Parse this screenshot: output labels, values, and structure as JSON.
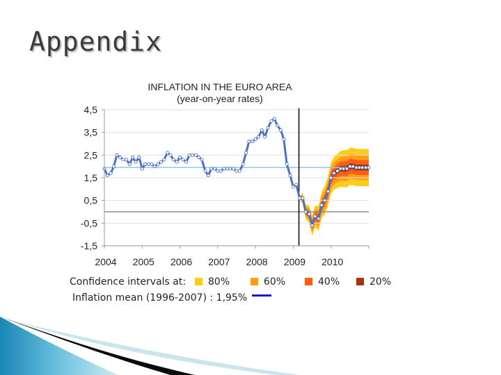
{
  "slide": {
    "title": "Appendix"
  },
  "legend": {
    "ci_label": "Confidence intervals at:",
    "ci_items": [
      {
        "label": "80%",
        "color": "#ffcc1a"
      },
      {
        "label": "60%",
        "color": "#ff9c1a"
      },
      {
        "label": "40%",
        "color": "#ff5e14"
      },
      {
        "label": "20%",
        "color": "#a2360c"
      }
    ],
    "mean_label": "Inflation mean (1996-2007) : 1,95%",
    "mean_color": "#1a1ad0"
  },
  "chart_data": {
    "type": "line",
    "title": "INFLATION IN THE EURO AREA",
    "subtitle": "(year-on-year rates)",
    "y_ticks": [
      "4,5",
      "3,5",
      "2,5",
      "1,5",
      "0,5",
      "-0,5",
      "-1,5"
    ],
    "y_tick_values": [
      4.5,
      3.5,
      2.5,
      1.5,
      0.5,
      -0.5,
      -1.5
    ],
    "ylim": [
      -1.5,
      4.5
    ],
    "x_ticks": [
      "2004",
      "2005",
      "2006",
      "2007",
      "2008",
      "2009",
      "2010"
    ],
    "x_tick_values": [
      2004,
      2005,
      2006,
      2007,
      2008,
      2009,
      2010
    ],
    "xlim": [
      2004,
      2011
    ],
    "reference_lines": [
      {
        "name": "mean",
        "y": 1.95,
        "color": "#8ec8ea"
      },
      {
        "name": "zero",
        "y": 0,
        "color": "#8c8c8c"
      }
    ],
    "forecast_start": 2009.15,
    "series": [
      {
        "color": "#4a70c8",
        "marker_color": "#ffffff",
        "x": [
          2004.0,
          2004.08,
          2004.17,
          2004.25,
          2004.33,
          2004.42,
          2004.5,
          2004.58,
          2004.67,
          2004.75,
          2004.83,
          2004.92,
          2005.0,
          2005.08,
          2005.17,
          2005.25,
          2005.33,
          2005.42,
          2005.5,
          2005.58,
          2005.67,
          2005.75,
          2005.83,
          2005.92,
          2006.0,
          2006.08,
          2006.17,
          2006.25,
          2006.33,
          2006.42,
          2006.5,
          2006.58,
          2006.67,
          2006.75,
          2006.83,
          2006.92,
          2007.0,
          2007.08,
          2007.17,
          2007.25,
          2007.33,
          2007.42,
          2007.5,
          2007.58,
          2007.67,
          2007.75,
          2007.83,
          2007.92,
          2008.0,
          2008.08,
          2008.17,
          2008.25,
          2008.33,
          2008.42,
          2008.5,
          2008.58,
          2008.67,
          2008.75,
          2008.83,
          2008.92,
          2009.0,
          2009.08,
          2009.17,
          2009.25,
          2009.33,
          2009.42,
          2009.5,
          2009.58,
          2009.67,
          2009.75,
          2009.83,
          2009.92,
          2010.0,
          2010.08,
          2010.17,
          2010.25,
          2010.33,
          2010.42,
          2010.5,
          2010.58,
          2010.67,
          2010.75,
          2010.83,
          2010.92,
          2011.0
        ],
        "y": [
          1.9,
          1.6,
          1.7,
          2.0,
          2.5,
          2.4,
          2.3,
          2.3,
          2.1,
          2.4,
          2.2,
          2.4,
          1.9,
          2.1,
          2.1,
          2.1,
          2.0,
          2.1,
          2.2,
          2.3,
          2.6,
          2.5,
          2.3,
          2.2,
          2.4,
          2.3,
          2.2,
          2.5,
          2.5,
          2.5,
          2.4,
          2.3,
          1.8,
          1.6,
          1.9,
          1.9,
          1.8,
          1.8,
          1.9,
          1.9,
          1.9,
          1.9,
          1.8,
          1.8,
          2.1,
          2.6,
          3.1,
          3.1,
          3.2,
          3.3,
          3.6,
          3.3,
          3.7,
          4.0,
          4.1,
          3.8,
          3.6,
          3.2,
          2.1,
          1.6,
          1.1,
          1.2,
          0.6,
          0.6,
          0.0,
          -0.1,
          -0.6,
          -0.2,
          -0.3,
          0.3,
          0.5,
          0.9,
          1.5,
          1.7,
          1.8,
          1.9,
          1.9,
          1.9,
          2.0,
          2.0,
          1.95,
          1.95,
          1.95,
          1.95,
          1.95
        ]
      }
    ]
  }
}
